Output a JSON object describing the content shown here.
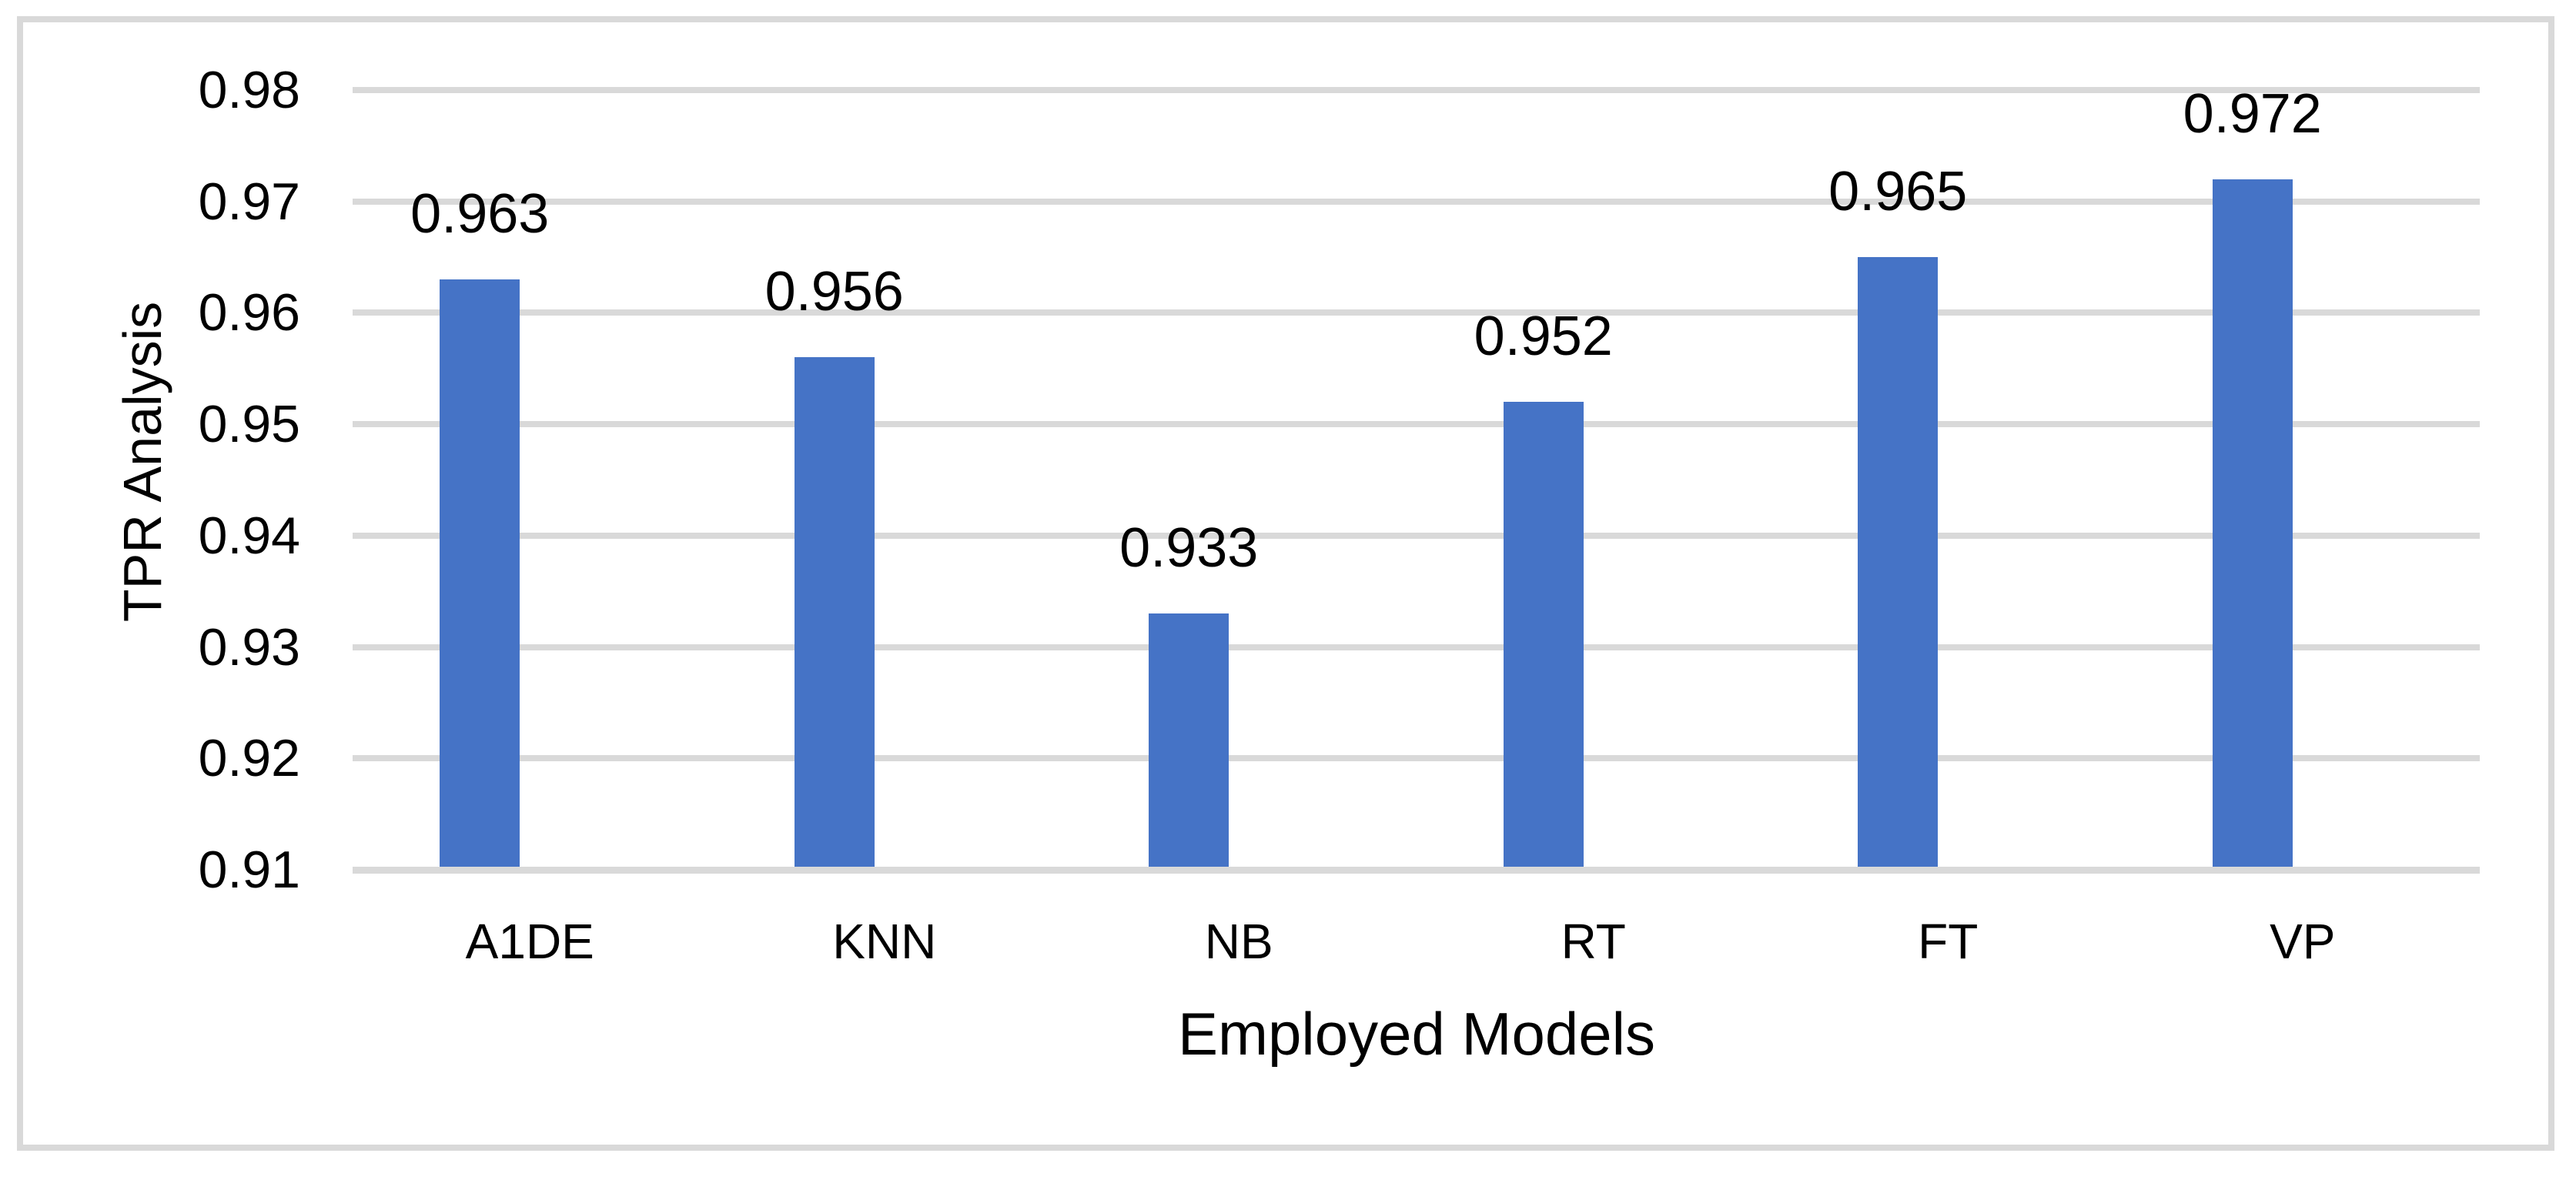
{
  "figure": {
    "background_color": "#FFFFFF",
    "border_color": "#D9D9D9"
  },
  "chart_data": {
    "type": "bar",
    "title": "",
    "categories": [
      "A1DE",
      "KNN",
      "NB",
      "RT",
      "FT",
      "VP"
    ],
    "values": [
      0.963,
      0.956,
      0.933,
      0.952,
      0.965,
      0.972
    ],
    "data_labels": [
      "0.963",
      "0.956",
      "0.933",
      "0.952",
      "0.965",
      "0.972"
    ],
    "xlabel": "Employed Models",
    "ylabel": "TPR Analysis",
    "ylim": [
      0.91,
      0.98
    ],
    "yticks": [
      "0.91",
      "0.92",
      "0.93",
      "0.94",
      "0.95",
      "0.96",
      "0.97",
      "0.98"
    ],
    "grid": true,
    "legend": false,
    "bar_color": "#4573C6",
    "gridline_color": "#D9D9D9",
    "axis_line_color": "#D9D9D9",
    "text_color": "#000000"
  }
}
